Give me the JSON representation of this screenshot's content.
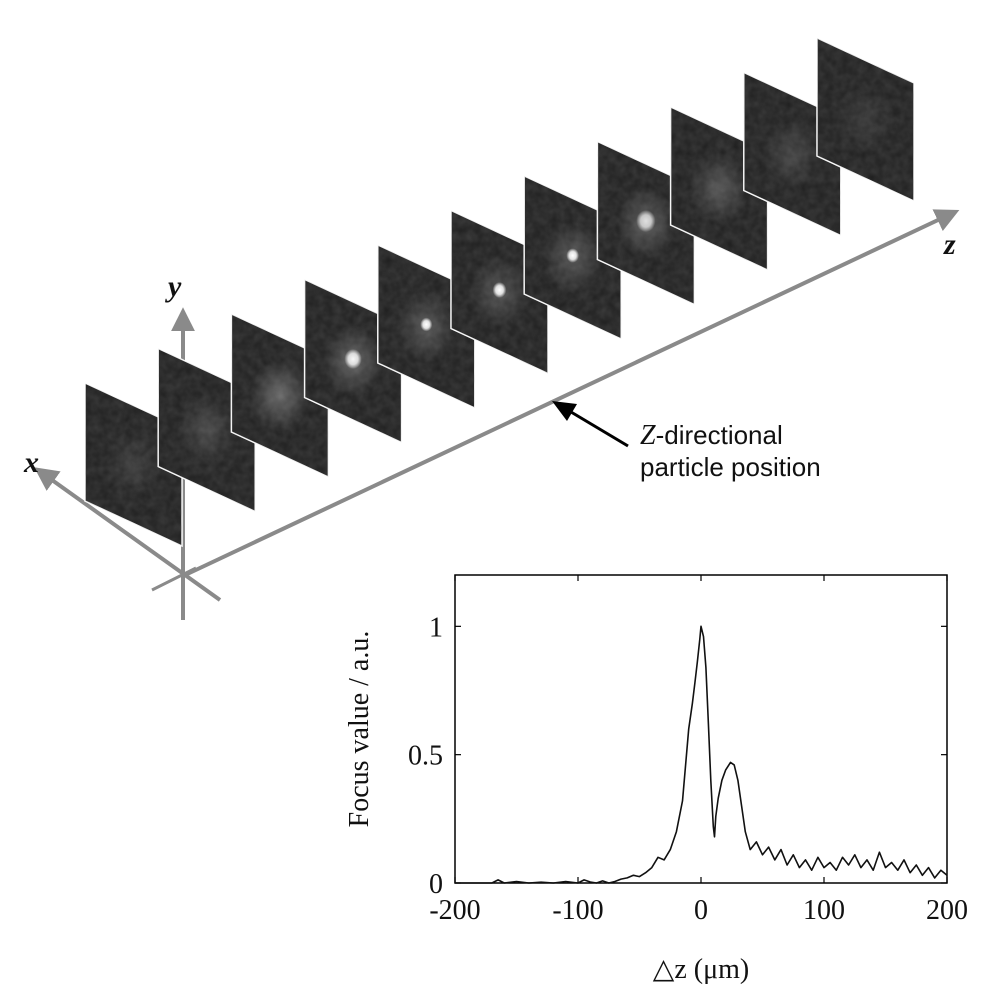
{
  "diagram": {
    "axis_labels": {
      "x": "x",
      "y": "y",
      "z": "z"
    },
    "annotation": {
      "line1_italic": "Z",
      "line1_rest": "-directional",
      "line2": "particle position"
    },
    "slices": [
      {
        "spot": 0.0,
        "halo": 0.1
      },
      {
        "spot": 0.0,
        "halo": 0.16
      },
      {
        "spot": 0.0,
        "halo": 0.3
      },
      {
        "spot": 0.55,
        "halo": 0.28
      },
      {
        "spot": 1.0,
        "halo": 0.22
      },
      {
        "spot": 0.85,
        "halo": 0.2
      },
      {
        "spot": 0.95,
        "halo": 0.22
      },
      {
        "spot": 0.4,
        "halo": 0.25
      },
      {
        "spot": 0.0,
        "halo": 0.22
      },
      {
        "spot": 0.0,
        "halo": 0.14
      },
      {
        "spot": 0.0,
        "halo": 0.08
      }
    ]
  },
  "chart_data": {
    "type": "line",
    "xlabel": "△z (μm)",
    "ylabel": "Focus value / a.u.",
    "xlim": [
      -200,
      200
    ],
    "ylim": [
      0,
      1.2
    ],
    "xticks": [
      -200,
      -100,
      0,
      100,
      200
    ],
    "xtick_labels": [
      "-200",
      "-100",
      "0",
      "100",
      "200"
    ],
    "yticks": [
      0,
      0.5,
      1
    ],
    "ytick_labels": [
      "0",
      "0.5",
      "1"
    ],
    "series": [
      {
        "x": [
          -200,
          -180,
          -170,
          -165,
          -160,
          -150,
          -140,
          -130,
          -120,
          -110,
          -100,
          -95,
          -90,
          -85,
          -80,
          -75,
          -70,
          -65,
          -60,
          -55,
          -50,
          -45,
          -40,
          -35,
          -30,
          -25,
          -20,
          -15,
          -10,
          -7,
          -5,
          -3,
          -1,
          0,
          2,
          4,
          6,
          8,
          10,
          11,
          12,
          14,
          17,
          20,
          24,
          27,
          30,
          33,
          36,
          40,
          45,
          50,
          55,
          60,
          65,
          70,
          75,
          80,
          85,
          90,
          95,
          100,
          105,
          110,
          115,
          120,
          125,
          130,
          135,
          140,
          145,
          150,
          155,
          160,
          165,
          170,
          175,
          180,
          185,
          190,
          195,
          200
        ],
        "y": [
          0.0,
          0.0,
          0.0,
          0.012,
          0.0,
          0.006,
          0.0,
          0.003,
          0.0,
          0.006,
          0.0,
          0.012,
          0.004,
          0.0,
          0.008,
          0.0,
          0.006,
          0.015,
          0.02,
          0.03,
          0.025,
          0.04,
          0.06,
          0.1,
          0.09,
          0.13,
          0.2,
          0.32,
          0.6,
          0.7,
          0.78,
          0.86,
          0.95,
          1.0,
          0.96,
          0.84,
          0.62,
          0.4,
          0.22,
          0.18,
          0.26,
          0.33,
          0.4,
          0.44,
          0.47,
          0.46,
          0.4,
          0.3,
          0.2,
          0.13,
          0.16,
          0.11,
          0.14,
          0.09,
          0.13,
          0.07,
          0.11,
          0.06,
          0.09,
          0.05,
          0.1,
          0.06,
          0.08,
          0.05,
          0.1,
          0.07,
          0.11,
          0.06,
          0.09,
          0.05,
          0.12,
          0.06,
          0.08,
          0.05,
          0.09,
          0.04,
          0.07,
          0.03,
          0.06,
          0.02,
          0.05,
          0.03
        ]
      }
    ]
  }
}
